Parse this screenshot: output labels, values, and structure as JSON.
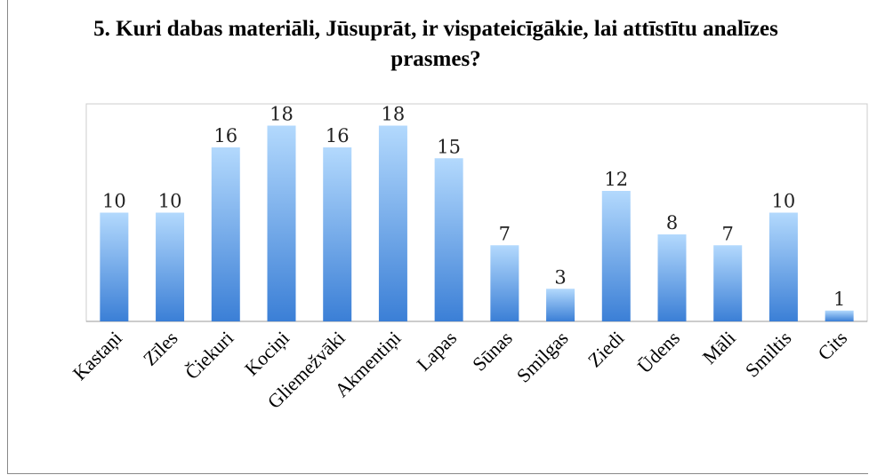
{
  "chart_data": {
    "type": "bar",
    "title": "5. Kuri dabas materiāli, Jūsuprāt, ir vispateicīgākie, lai attīstītu analīzes prasmes?",
    "categories": [
      "Kastaņi",
      "Zīles",
      "Čiekuri",
      "Kociņi",
      "Gliemežvāki",
      "Akmentiņi",
      "Lapas",
      "Sūnas",
      "Smilgas",
      "Ziedi",
      "Ūdens",
      "Māli",
      "Smiltis",
      "Cits"
    ],
    "values": [
      10,
      10,
      16,
      18,
      16,
      18,
      15,
      7,
      3,
      12,
      8,
      7,
      10,
      1
    ],
    "ylim": [
      0,
      20
    ]
  }
}
